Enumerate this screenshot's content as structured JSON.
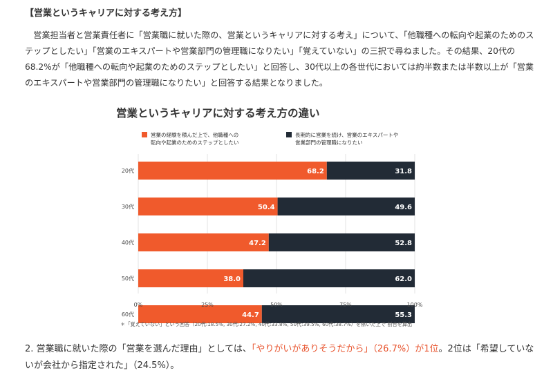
{
  "section_title": "【営業というキャリアに対する考え方】",
  "intro_text": "営業担当者と営業責任者に「営業職に就いた際の、営業というキャリアに対する考え」について、「他職種への転向や起業のためのステップとしたい」「営業のエキスパートや営業部門の管理職になりたい」「覚えていない」の三択で尋ねました。その結果、20代の68.2%が「他職種への転向や起業のためのステップとしたい」と回答し、30代以上の各世代においては約半数または半数以上が「営業のエキスパートや営業部門の管理職になりたい」と回答する結果となりました。",
  "chart_data": {
    "type": "bar",
    "orientation": "horizontal",
    "stacked": true,
    "title": "営業というキャリアに対する考え方の違い",
    "categories": [
      "20代",
      "30代",
      "40代",
      "50代",
      "60代"
    ],
    "series": [
      {
        "name_line1": "営業の経験を積んだ上で、他職種への",
        "name_line2": "転向や起業のためのステップとしたい",
        "color": "#f05a2c",
        "values": [
          68.2,
          50.4,
          47.2,
          38.0,
          44.7
        ],
        "labels": [
          "68.2",
          "50.4",
          "47.2",
          "38.0",
          "44.7"
        ]
      },
      {
        "name_line1": "長期的に営業を続け、営業のエキスパートや",
        "name_line2": "営業部門の管理職になりたい",
        "color": "#222b36",
        "values": [
          31.8,
          49.6,
          52.8,
          62.0,
          55.3
        ],
        "labels": [
          "31.8",
          "49.6",
          "52.8",
          "62.0",
          "55.3"
        ]
      }
    ],
    "x_ticks": [
      "0%",
      "25%",
      "50%",
      "75%",
      "100%"
    ],
    "xlim": [
      0,
      100
    ],
    "legend_position": "top",
    "grid": true,
    "footnote": "＊「覚えていない」という回答（20代:18.5%, 30代:27.2%, 40代:33.8%, 50代:39.5%, 60代:38.7%）を除いた上で 割合を算出"
  },
  "bottom": {
    "prefix": "2. 営業職に就いた際の「営業を選んだ理由」としては、",
    "highlight": "「やりがいがありそうだから」（26.7%）が1位",
    "suffix": "。2位は「希望していないが会社から指定された」（24.5%）。"
  }
}
